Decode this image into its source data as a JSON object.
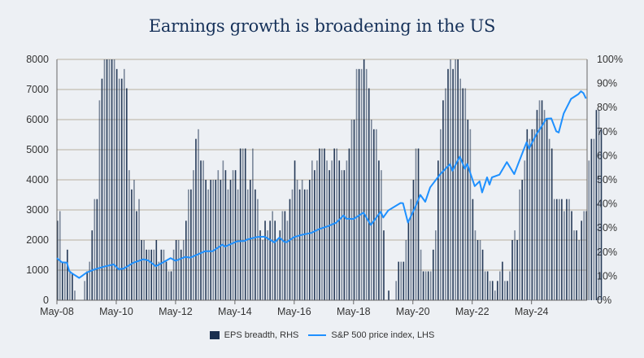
{
  "chart_data": {
    "type": "bar+line",
    "title": "Earnings growth is broadening in the US",
    "x_tick_labels": [
      "May-08",
      "May-10",
      "May-12",
      "May-14",
      "May-16",
      "May-18",
      "May-20",
      "May-22",
      "May-24"
    ],
    "left_axis": {
      "range": [
        0,
        8000
      ],
      "ticks": [
        "0",
        "1000",
        "2000",
        "3000",
        "4000",
        "5000",
        "6000",
        "7000",
        "8000"
      ]
    },
    "right_axis": {
      "range": [
        0,
        100
      ],
      "ticks": [
        "0%",
        "10%",
        "20%",
        "30%",
        "40%",
        "50%",
        "60%",
        "70%",
        "80%",
        "90%",
        "100%"
      ]
    },
    "grid": true,
    "legend_position": "bottom",
    "colors": {
      "bars": "#1a2f4f",
      "line": "#1e90ff",
      "grid": "#b9b1a1",
      "background": "#edf0f4",
      "title": "#17325a"
    },
    "series": [
      {
        "name": "EPS breadth, RHS",
        "type": "bar",
        "axis": "right",
        "start": "2008-05",
        "frequency": "monthly",
        "values": [
          33,
          37,
          16,
          16,
          21,
          12,
          11,
          4,
          0,
          0,
          0,
          8,
          12,
          16,
          29,
          42,
          42,
          83,
          92,
          100,
          100,
          100,
          100,
          100,
          96,
          92,
          92,
          96,
          88,
          54,
          46,
          50,
          37,
          42,
          25,
          25,
          21,
          21,
          21,
          21,
          25,
          16,
          21,
          21,
          16,
          12,
          12,
          21,
          25,
          25,
          21,
          25,
          33,
          46,
          46,
          54,
          67,
          71,
          58,
          58,
          50,
          46,
          50,
          50,
          50,
          54,
          50,
          58,
          54,
          46,
          50,
          54,
          54,
          46,
          63,
          63,
          63,
          46,
          50,
          63,
          46,
          42,
          29,
          25,
          33,
          29,
          33,
          37,
          33,
          25,
          29,
          37,
          37,
          33,
          42,
          46,
          58,
          50,
          46,
          50,
          46,
          46,
          50,
          58,
          54,
          58,
          63,
          63,
          63,
          58,
          54,
          58,
          63,
          63,
          58,
          54,
          54,
          58,
          63,
          75,
          75,
          96,
          96,
          96,
          100,
          96,
          88,
          75,
          71,
          71,
          58,
          54,
          29,
          0,
          4,
          0,
          0,
          8,
          16,
          16,
          16,
          25,
          33,
          42,
          50,
          63,
          63,
          21,
          12,
          12,
          12,
          12,
          21,
          29,
          58,
          71,
          83,
          88,
          96,
          100,
          96,
          100,
          100,
          92,
          88,
          88,
          75,
          71,
          42,
          29,
          25,
          25,
          21,
          12,
          12,
          8,
          8,
          4,
          8,
          12,
          16,
          8,
          8,
          12,
          25,
          29,
          25,
          46,
          50,
          58,
          71,
          67,
          71,
          71,
          79,
          83,
          83,
          79,
          75,
          67,
          63,
          42,
          42,
          42,
          42,
          37,
          42,
          42,
          37,
          29,
          29,
          25,
          33,
          37,
          37,
          58,
          67,
          67,
          79,
          79,
          71
        ]
      },
      {
        "name": "S&P 500 price index, LHS",
        "type": "line",
        "axis": "left",
        "points": [
          [
            "2008-05",
            1400
          ],
          [
            "2008-07",
            1260
          ],
          [
            "2008-09",
            1250
          ],
          [
            "2008-10",
            970
          ],
          [
            "2008-11",
            900
          ],
          [
            "2009-02",
            740
          ],
          [
            "2009-03",
            800
          ],
          [
            "2009-05",
            920
          ],
          [
            "2009-08",
            1020
          ],
          [
            "2009-12",
            1115
          ],
          [
            "2010-04",
            1190
          ],
          [
            "2010-06",
            1030
          ],
          [
            "2010-08",
            1050
          ],
          [
            "2010-12",
            1250
          ],
          [
            "2011-04",
            1360
          ],
          [
            "2011-06",
            1320
          ],
          [
            "2011-09",
            1130
          ],
          [
            "2011-12",
            1260
          ],
          [
            "2012-03",
            1400
          ],
          [
            "2012-05",
            1310
          ],
          [
            "2012-09",
            1440
          ],
          [
            "2012-11",
            1415
          ],
          [
            "2013-05",
            1630
          ],
          [
            "2013-08",
            1630
          ],
          [
            "2013-12",
            1850
          ],
          [
            "2014-01",
            1780
          ],
          [
            "2014-06",
            1960
          ],
          [
            "2014-09",
            1970
          ],
          [
            "2014-10",
            2018
          ],
          [
            "2015-02",
            2100
          ],
          [
            "2015-05",
            2110
          ],
          [
            "2015-08",
            1970
          ],
          [
            "2015-09",
            1920
          ],
          [
            "2015-11",
            2080
          ],
          [
            "2016-01",
            1940
          ],
          [
            "2016-02",
            1930
          ],
          [
            "2016-05",
            2100
          ],
          [
            "2016-08",
            2170
          ],
          [
            "2016-12",
            2240
          ],
          [
            "2017-03",
            2360
          ],
          [
            "2017-07",
            2470
          ],
          [
            "2017-10",
            2575
          ],
          [
            "2018-01",
            2820
          ],
          [
            "2018-02",
            2710
          ],
          [
            "2018-05",
            2700
          ],
          [
            "2018-09",
            2910
          ],
          [
            "2018-12",
            2500
          ],
          [
            "2019-04",
            2940
          ],
          [
            "2019-05",
            2750
          ],
          [
            "2019-07",
            2980
          ],
          [
            "2019-12",
            3230
          ],
          [
            "2020-01",
            3225
          ],
          [
            "2020-03",
            2580
          ],
          [
            "2020-06",
            3100
          ],
          [
            "2020-08",
            3500
          ],
          [
            "2020-10",
            3270
          ],
          [
            "2020-12",
            3750
          ],
          [
            "2021-04",
            4180
          ],
          [
            "2021-08",
            4520
          ],
          [
            "2021-09",
            4300
          ],
          [
            "2021-12",
            4770
          ],
          [
            "2022-02",
            4370
          ],
          [
            "2022-03",
            4530
          ],
          [
            "2022-06",
            3790
          ],
          [
            "2022-08",
            3950
          ],
          [
            "2022-09",
            3580
          ],
          [
            "2022-11",
            4080
          ],
          [
            "2022-12",
            3840
          ],
          [
            "2023-01",
            4080
          ],
          [
            "2023-04",
            4170
          ],
          [
            "2023-07",
            4590
          ],
          [
            "2023-10",
            4190
          ],
          [
            "2024-03",
            5250
          ],
          [
            "2024-04",
            5035
          ],
          [
            "2024-07",
            5520
          ],
          [
            "2024-09",
            5760
          ],
          [
            "2024-11",
            6030
          ],
          [
            "2025-01",
            6040
          ],
          [
            "2025-03",
            5610
          ],
          [
            "2025-04",
            5570
          ],
          [
            "2025-06",
            6200
          ],
          [
            "2025-09",
            6690
          ],
          [
            "2025-12",
            6850
          ],
          [
            "2026-01",
            6940
          ],
          [
            "2026-02",
            6880
          ],
          [
            "2026-03",
            6700
          ]
        ]
      }
    ]
  }
}
